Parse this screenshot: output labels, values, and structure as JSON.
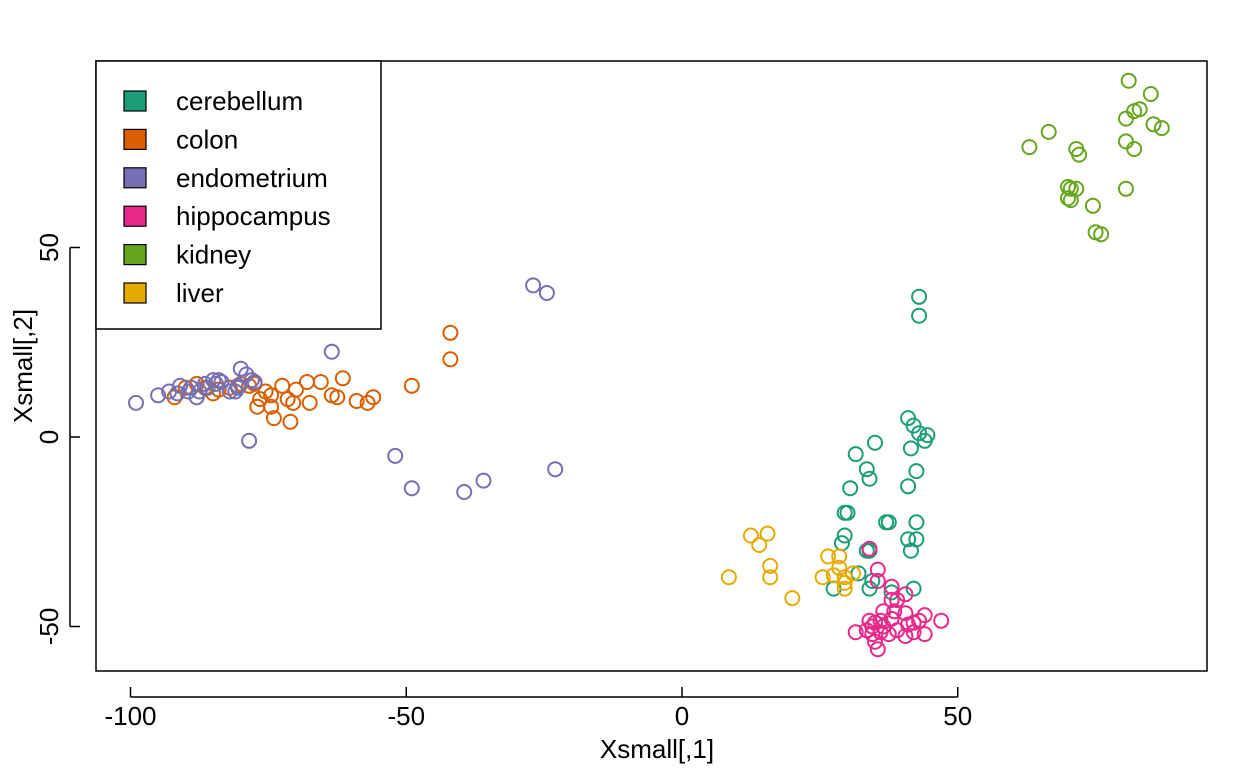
{
  "chart_data": {
    "type": "scatter",
    "title": "",
    "xlabel": "Xsmall[,1]",
    "ylabel": "Xsmall[,2]",
    "xlim": [
      -100,
      95
    ],
    "ylim": [
      -62,
      100
    ],
    "xticks": [
      -100,
      -50,
      0,
      50
    ],
    "yticks": [
      -50,
      0,
      50
    ],
    "grid": false,
    "legend_position": "top-left",
    "marker": "open-circle",
    "series": [
      {
        "name": "cerebellum",
        "color": "#1B9E77",
        "points": [
          [
            43,
            37
          ],
          [
            43,
            32
          ],
          [
            41,
            5
          ],
          [
            42,
            3
          ],
          [
            43,
            1
          ],
          [
            44.5,
            0.5
          ],
          [
            44,
            -1
          ],
          [
            41.5,
            -3
          ],
          [
            35,
            -1.5
          ],
          [
            31.5,
            -4.5
          ],
          [
            42.5,
            -9
          ],
          [
            33.5,
            -8.5
          ],
          [
            34,
            -11
          ],
          [
            30.5,
            -13.5
          ],
          [
            41,
            -13
          ],
          [
            30,
            -20
          ],
          [
            29.5,
            -20
          ],
          [
            37,
            -22.5
          ],
          [
            37.5,
            -22.5
          ],
          [
            42.5,
            -22.5
          ],
          [
            29.5,
            -26
          ],
          [
            29,
            -28
          ],
          [
            41,
            -27
          ],
          [
            42.5,
            -27
          ],
          [
            41.5,
            -30
          ],
          [
            33.5,
            -30
          ],
          [
            34,
            -30
          ],
          [
            32,
            -36
          ],
          [
            34.5,
            -38
          ],
          [
            34,
            -40
          ],
          [
            42,
            -40
          ],
          [
            27.5,
            -40
          ],
          [
            38,
            -41
          ]
        ]
      },
      {
        "name": "colon",
        "color": "#D95F02",
        "points": [
          [
            -42,
            27.5
          ],
          [
            -42,
            20.5
          ],
          [
            -49,
            13.5
          ],
          [
            -56,
            10.5
          ],
          [
            -57,
            9
          ],
          [
            -59,
            9.5
          ],
          [
            -61.5,
            15.5
          ],
          [
            -62.5,
            10.5
          ],
          [
            -63.5,
            11
          ],
          [
            -65.5,
            14.5
          ],
          [
            -67.5,
            9
          ],
          [
            -68,
            14.5
          ],
          [
            -70,
            12.5
          ],
          [
            -70.5,
            9
          ],
          [
            -71,
            4
          ],
          [
            -71.5,
            10
          ],
          [
            -72.5,
            13.5
          ],
          [
            -74,
            5
          ],
          [
            -74.5,
            8
          ],
          [
            -74.5,
            11
          ],
          [
            -75.5,
            12
          ],
          [
            -76.5,
            10
          ],
          [
            -77,
            8
          ],
          [
            -77.5,
            14
          ],
          [
            -78.5,
            13.5
          ],
          [
            -80,
            14
          ],
          [
            -82,
            13
          ],
          [
            -84,
            12.5
          ],
          [
            -85,
            11.5
          ],
          [
            -86.5,
            13
          ],
          [
            -88,
            14
          ],
          [
            -90,
            13
          ],
          [
            -92,
            10.5
          ]
        ]
      },
      {
        "name": "endometrium",
        "color": "#7570B3",
        "points": [
          [
            -27,
            40
          ],
          [
            -24.5,
            38
          ],
          [
            -63.5,
            22.5
          ],
          [
            -52,
            -5
          ],
          [
            -49,
            -13.5
          ],
          [
            -39.5,
            -14.5
          ],
          [
            -36,
            -11.5
          ],
          [
            -23,
            -8.5
          ],
          [
            -78.5,
            -1
          ],
          [
            -99,
            9
          ],
          [
            -95,
            11
          ],
          [
            -93,
            12
          ],
          [
            -91.5,
            11.5
          ],
          [
            -91,
            13.5
          ],
          [
            -89.5,
            12
          ],
          [
            -89,
            13
          ],
          [
            -88,
            10.5
          ],
          [
            -87.5,
            12
          ],
          [
            -86,
            13
          ],
          [
            -85,
            15
          ],
          [
            -84.5,
            14
          ],
          [
            -83.5,
            14.5
          ],
          [
            -82,
            12
          ],
          [
            -81,
            12
          ],
          [
            -80.5,
            13.5
          ],
          [
            -80,
            18
          ],
          [
            -79,
            16.5
          ],
          [
            -78,
            15
          ],
          [
            -77.5,
            14.5
          ],
          [
            -80.5,
            13
          ],
          [
            -84,
            15
          ],
          [
            -86.5,
            14
          ]
        ]
      },
      {
        "name": "hippocampus",
        "color": "#E7298A",
        "points": [
          [
            34,
            -29.5
          ],
          [
            35.5,
            -35
          ],
          [
            35.5,
            -38
          ],
          [
            38,
            -39.5
          ],
          [
            40.5,
            -41.5
          ],
          [
            38,
            -43
          ],
          [
            39,
            -43
          ],
          [
            36.5,
            -46
          ],
          [
            38.5,
            -46
          ],
          [
            40.5,
            -46.5
          ],
          [
            44,
            -47
          ],
          [
            47,
            -48.5
          ],
          [
            34,
            -48.5
          ],
          [
            35,
            -49
          ],
          [
            36,
            -48.5
          ],
          [
            36.5,
            -50
          ],
          [
            41,
            -49.5
          ],
          [
            42,
            -49
          ],
          [
            43,
            -48.5
          ],
          [
            31.5,
            -51.5
          ],
          [
            33.5,
            -51
          ],
          [
            34.5,
            -52
          ],
          [
            36,
            -51.5
          ],
          [
            37.5,
            -52
          ],
          [
            39,
            -51
          ],
          [
            40.5,
            -52.5
          ],
          [
            42,
            -51.5
          ],
          [
            44,
            -52
          ],
          [
            35,
            -54
          ],
          [
            35.5,
            -56
          ],
          [
            34.5,
            -50
          ],
          [
            38,
            -48
          ]
        ]
      },
      {
        "name": "kidney",
        "color": "#66A61E",
        "points": [
          [
            81,
            94
          ],
          [
            85,
            90.5
          ],
          [
            83,
            86.5
          ],
          [
            82,
            86
          ],
          [
            80.5,
            84
          ],
          [
            85.5,
            82.5
          ],
          [
            87,
            81.5
          ],
          [
            80.5,
            78
          ],
          [
            82,
            76
          ],
          [
            66.5,
            80.5
          ],
          [
            63,
            76.5
          ],
          [
            71.5,
            76
          ],
          [
            72,
            74.5
          ],
          [
            70,
            66
          ],
          [
            70.5,
            65.5
          ],
          [
            71.5,
            65.5
          ],
          [
            70,
            63
          ],
          [
            70.5,
            62.5
          ],
          [
            80.5,
            65.5
          ],
          [
            74.5,
            61
          ],
          [
            75,
            54
          ],
          [
            76,
            53.5
          ]
        ]
      },
      {
        "name": "liver",
        "color": "#E6AB02",
        "points": [
          [
            12.5,
            -26
          ],
          [
            15.5,
            -25.5
          ],
          [
            14,
            -28.5
          ],
          [
            16,
            -34
          ],
          [
            8.5,
            -37
          ],
          [
            16,
            -37
          ],
          [
            26.5,
            -31.5
          ],
          [
            28.5,
            -31.5
          ],
          [
            28.5,
            -34.5
          ],
          [
            29.5,
            -37
          ],
          [
            27.5,
            -36.5
          ],
          [
            25.5,
            -37
          ],
          [
            29.5,
            -38.5
          ],
          [
            31,
            -36
          ],
          [
            29.5,
            -40
          ],
          [
            20,
            -42.5
          ]
        ]
      }
    ]
  }
}
